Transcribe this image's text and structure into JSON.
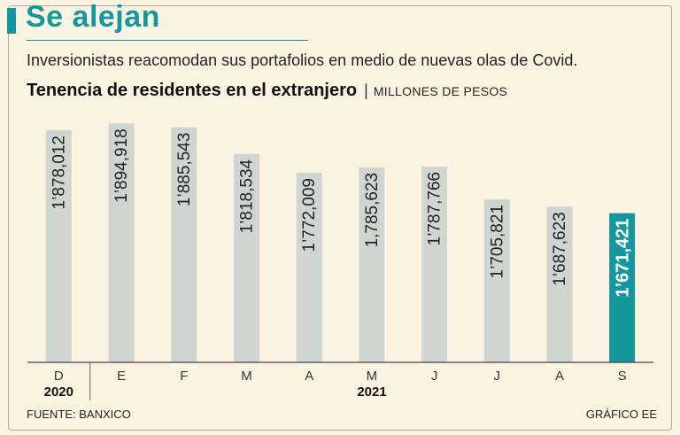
{
  "header": {
    "title": "Se alejan",
    "subtitle": "Inversionistas reacomodan sus portafolios en medio de nuevas olas de Covid.",
    "chart_title": "Tenencia de residentes en el extranjero",
    "separator": "|",
    "unit": "MILLONES DE PESOS"
  },
  "footer": {
    "source": "FUENTE: BANXICO",
    "credit": "GRÁFICO EE"
  },
  "colors": {
    "accent": "#15979e",
    "bar": "#cfd6d2",
    "background": "#fbf3e1"
  },
  "chart_data": {
    "type": "bar",
    "title": "Tenencia de residentes en el extranjero",
    "ylabel": "MILLONES DE PESOS",
    "categories": [
      "D",
      "E",
      "F",
      "M",
      "A",
      "M",
      "J",
      "J",
      "A",
      "S"
    ],
    "values": [
      1878012,
      1894918,
      1885543,
      1818534,
      1772009,
      1785623,
      1787766,
      1705821,
      1687623,
      1671421
    ],
    "value_labels": [
      "1’878,012",
      "1’894,918",
      "1’885,543",
      "1’818,534",
      "1’772,009",
      "1,785,623",
      "1’787,766",
      "1’705,821",
      "1’687,623",
      "1’671,421"
    ],
    "year_labels": [
      "2020",
      "2021"
    ],
    "highlight_index": 9,
    "ylim": [
      1300000,
      1900000
    ]
  }
}
